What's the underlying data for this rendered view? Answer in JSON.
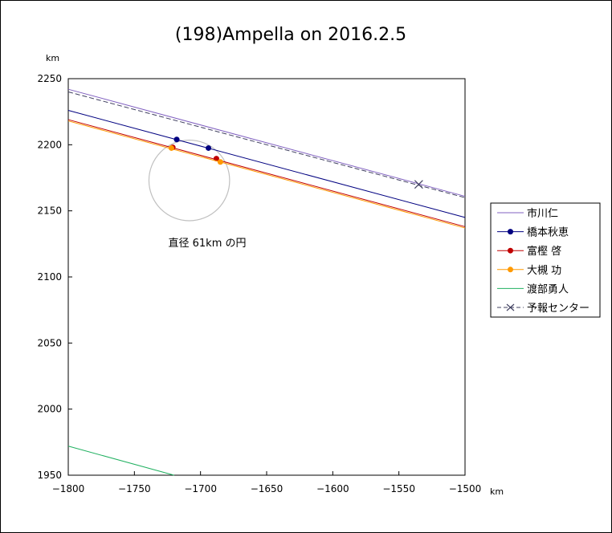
{
  "chart_data": {
    "type": "line",
    "title": "(198)Ampella on 2016.2.5",
    "x_unit": "km",
    "y_unit": "km",
    "xlim": [
      -1800,
      -1500
    ],
    "ylim": [
      1950,
      2250
    ],
    "x_ticks": [
      -1800,
      -1750,
      -1700,
      -1650,
      -1600,
      -1550,
      -1500
    ],
    "y_ticks": [
      1950,
      2000,
      2050,
      2100,
      2150,
      2200,
      2250
    ],
    "x_tick_labels": [
      "−1800",
      "−1750",
      "−1700",
      "−1650",
      "−1600",
      "−1550",
      "−1500"
    ],
    "y_tick_labels": [
      "1950",
      "2000",
      "2050",
      "2100",
      "2150",
      "2200",
      "2250"
    ],
    "grid": false,
    "legend_position": "right",
    "series": [
      {
        "name": "市川仁",
        "color": "#8060c0",
        "style": "solid",
        "line": [
          [
            -1800,
            2242
          ],
          [
            -1500,
            2161
          ]
        ],
        "points": []
      },
      {
        "name": "橋本秋恵",
        "color": "#000080",
        "style": "solid",
        "line": [
          [
            -1800,
            2226
          ],
          [
            -1500,
            2145
          ]
        ],
        "points": [
          [
            -1718,
            2204
          ],
          [
            -1694,
            2197.5
          ]
        ]
      },
      {
        "name": "富樫 啓",
        "color": "#c00000",
        "style": "solid",
        "line": [
          [
            -1800,
            2219
          ],
          [
            -1500,
            2138
          ]
        ],
        "points": [
          [
            -1721,
            2198
          ],
          [
            -1688,
            2189.5
          ]
        ]
      },
      {
        "name": "大槻 功",
        "color": "#ff9900",
        "style": "solid",
        "line": [
          [
            -1800,
            2218
          ],
          [
            -1500,
            2137
          ]
        ],
        "points": [
          [
            -1722,
            2197.5
          ],
          [
            -1685,
            2187
          ]
        ]
      },
      {
        "name": "渡部勇人",
        "color": "#20b060",
        "style": "solid",
        "line": [
          [
            -1800,
            1972
          ],
          [
            -1720,
            1950
          ]
        ],
        "points": []
      },
      {
        "name": "予報センター",
        "color": "#404060",
        "style": "dashed",
        "line": [
          [
            -1800,
            2240
          ],
          [
            -1500,
            2160
          ]
        ],
        "points": [],
        "marker": [
          -1535,
          2170
        ]
      }
    ],
    "circle": {
      "center": [
        -1708.5,
        2173
      ],
      "diameter": 61,
      "color": "#c0c0c0"
    },
    "annotation": "直径 61km の円"
  }
}
